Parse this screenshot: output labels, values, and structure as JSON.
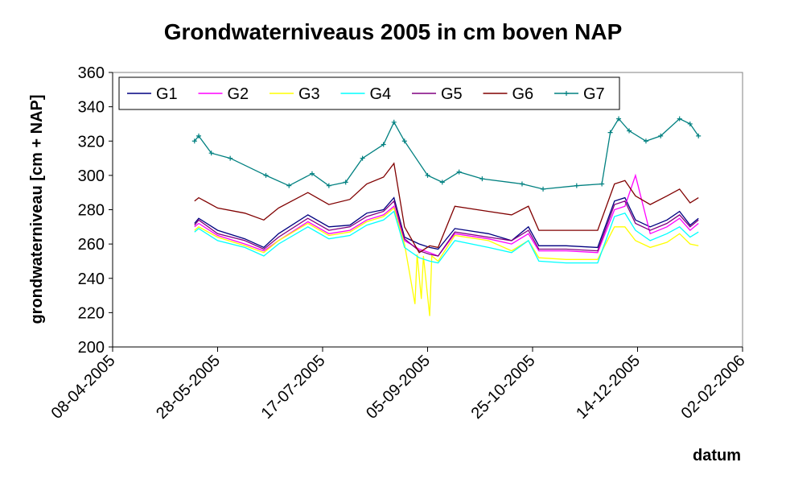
{
  "chart_data": {
    "type": "line",
    "title": "Grondwaterniveaus 2005 in cm boven NAP",
    "xlabel": "datum",
    "ylabel": "grondwaterniveau [cm + NAP]",
    "ylim": [
      200,
      360
    ],
    "yticks": [
      200,
      220,
      240,
      260,
      280,
      300,
      320,
      340,
      360
    ],
    "xticks": [
      "08-04-2005",
      "28-05-2005",
      "17-07-2005",
      "05-09-2005",
      "25-10-2005",
      "14-12-2005",
      "02-02-2006"
    ],
    "xlim": [
      "2005-04-08",
      "2006-02-02"
    ],
    "grid": false,
    "legend": "top-left",
    "series": [
      {
        "name": "G1",
        "color": "#000080",
        "marker": "none",
        "x": [
          "2005-05-17",
          "2005-05-19",
          "2005-05-28",
          "2005-06-10",
          "2005-06-19",
          "2005-06-26",
          "2005-07-10",
          "2005-07-20",
          "2005-07-30",
          "2005-08-07",
          "2005-08-15",
          "2005-08-20",
          "2005-08-25",
          "2005-09-01",
          "2005-09-06",
          "2005-09-10",
          "2005-09-18",
          "2005-10-04",
          "2005-10-15",
          "2005-10-23",
          "2005-10-28",
          "2005-11-10",
          "2005-11-25",
          "2005-12-03",
          "2005-12-08",
          "2005-12-13",
          "2005-12-20",
          "2005-12-28",
          "2006-01-03",
          "2006-01-08",
          "2006-01-12"
        ],
        "y": [
          272,
          275,
          268,
          263,
          258,
          266,
          277,
          270,
          271,
          278,
          280,
          287,
          264,
          260,
          258,
          257,
          269,
          266,
          262,
          270,
          259,
          259,
          258,
          285,
          287,
          274,
          270,
          274,
          279,
          271,
          275
        ]
      },
      {
        "name": "G2",
        "color": "#FF00FF",
        "marker": "none",
        "x": [
          "2005-05-17",
          "2005-05-19",
          "2005-05-28",
          "2005-06-10",
          "2005-06-19",
          "2005-06-26",
          "2005-07-10",
          "2005-07-20",
          "2005-07-30",
          "2005-08-07",
          "2005-08-15",
          "2005-08-20",
          "2005-08-25",
          "2005-09-01",
          "2005-09-06",
          "2005-09-10",
          "2005-09-18",
          "2005-10-04",
          "2005-10-15",
          "2005-10-23",
          "2005-10-28",
          "2005-11-10",
          "2005-11-25",
          "2005-12-03",
          "2005-12-08",
          "2005-12-13",
          "2005-12-20",
          "2005-12-28",
          "2006-01-03",
          "2006-01-08",
          "2006-01-12"
        ],
        "y": [
          270,
          272,
          265,
          260,
          256,
          262,
          273,
          266,
          268,
          274,
          277,
          282,
          262,
          257,
          255,
          253,
          266,
          263,
          260,
          266,
          256,
          256,
          255,
          280,
          282,
          300,
          266,
          270,
          275,
          268,
          272
        ]
      },
      {
        "name": "G3",
        "color": "#FFFF00",
        "marker": "none",
        "x": [
          "2005-05-17",
          "2005-05-19",
          "2005-05-28",
          "2005-06-10",
          "2005-06-19",
          "2005-06-26",
          "2005-07-10",
          "2005-07-20",
          "2005-07-30",
          "2005-08-07",
          "2005-08-15",
          "2005-08-20",
          "2005-08-25",
          "2005-08-30",
          "2005-08-31",
          "2005-09-02",
          "2005-09-03",
          "2005-09-06",
          "2005-09-07",
          "2005-09-10",
          "2005-09-18",
          "2005-10-04",
          "2005-10-15",
          "2005-10-23",
          "2005-10-28",
          "2005-11-10",
          "2005-11-25",
          "2005-12-03",
          "2005-12-08",
          "2005-12-13",
          "2005-12-20",
          "2005-12-28",
          "2006-01-03",
          "2006-01-08",
          "2006-01-12"
        ],
        "y": [
          268,
          270,
          264,
          259,
          255,
          262,
          272,
          265,
          267,
          273,
          276,
          281,
          260,
          225,
          254,
          228,
          253,
          218,
          253,
          250,
          265,
          262,
          256,
          262,
          252,
          251,
          251,
          270,
          270,
          262,
          258,
          261,
          266,
          260,
          259
        ]
      },
      {
        "name": "G4",
        "color": "#00FFFF",
        "marker": "none",
        "x": [
          "2005-05-17",
          "2005-05-19",
          "2005-05-28",
          "2005-06-10",
          "2005-06-19",
          "2005-06-26",
          "2005-07-10",
          "2005-07-20",
          "2005-07-30",
          "2005-08-07",
          "2005-08-15",
          "2005-08-20",
          "2005-08-25",
          "2005-09-01",
          "2005-09-06",
          "2005-09-10",
          "2005-09-18",
          "2005-10-04",
          "2005-10-15",
          "2005-10-23",
          "2005-10-28",
          "2005-11-10",
          "2005-11-25",
          "2005-12-03",
          "2005-12-08",
          "2005-12-13",
          "2005-12-20",
          "2005-12-28",
          "2006-01-03",
          "2006-01-08",
          "2006-01-12"
        ],
        "y": [
          267,
          269,
          262,
          258,
          253,
          260,
          270,
          263,
          265,
          271,
          274,
          279,
          258,
          252,
          250,
          249,
          262,
          258,
          255,
          262,
          250,
          249,
          249,
          276,
          278,
          268,
          262,
          266,
          270,
          264,
          267
        ]
      },
      {
        "name": "G5",
        "color": "#800080",
        "marker": "none",
        "x": [
          "2005-05-17",
          "2005-05-19",
          "2005-05-28",
          "2005-06-10",
          "2005-06-19",
          "2005-06-26",
          "2005-07-10",
          "2005-07-20",
          "2005-07-30",
          "2005-08-07",
          "2005-08-15",
          "2005-08-20",
          "2005-08-25",
          "2005-09-01",
          "2005-09-06",
          "2005-09-10",
          "2005-09-18",
          "2005-10-04",
          "2005-10-15",
          "2005-10-23",
          "2005-10-28",
          "2005-11-10",
          "2005-11-25",
          "2005-12-03",
          "2005-12-08",
          "2005-12-13",
          "2005-12-20",
          "2005-12-28",
          "2006-01-03",
          "2006-01-08",
          "2006-01-12"
        ],
        "y": [
          271,
          274,
          266,
          262,
          257,
          264,
          275,
          268,
          270,
          276,
          279,
          285,
          263,
          256,
          254,
          253,
          267,
          264,
          262,
          268,
          257,
          257,
          256,
          283,
          285,
          272,
          268,
          272,
          277,
          270,
          274
        ]
      },
      {
        "name": "G6",
        "color": "#800000",
        "marker": "none",
        "x": [
          "2005-05-17",
          "2005-05-19",
          "2005-05-28",
          "2005-06-10",
          "2005-06-19",
          "2005-06-26",
          "2005-07-10",
          "2005-07-20",
          "2005-07-30",
          "2005-08-07",
          "2005-08-15",
          "2005-08-20",
          "2005-08-25",
          "2005-09-01",
          "2005-09-06",
          "2005-09-10",
          "2005-09-18",
          "2005-10-04",
          "2005-10-15",
          "2005-10-23",
          "2005-10-28",
          "2005-11-10",
          "2005-11-25",
          "2005-12-03",
          "2005-12-08",
          "2005-12-13",
          "2005-12-20",
          "2005-12-28",
          "2006-01-03",
          "2006-01-08",
          "2006-01-12"
        ],
        "y": [
          285,
          287,
          281,
          278,
          274,
          281,
          290,
          283,
          286,
          295,
          299,
          307,
          270,
          255,
          259,
          258,
          282,
          279,
          277,
          282,
          268,
          268,
          268,
          295,
          297,
          288,
          283,
          288,
          292,
          284,
          287
        ]
      },
      {
        "name": "G7",
        "color": "#008080",
        "marker": "plus",
        "x": [
          "2005-05-17",
          "2005-05-19",
          "2005-05-25",
          "2005-06-03",
          "2005-06-20",
          "2005-07-01",
          "2005-07-12",
          "2005-07-20",
          "2005-07-28",
          "2005-08-05",
          "2005-08-15",
          "2005-08-20",
          "2005-08-25",
          "2005-09-05",
          "2005-09-12",
          "2005-09-20",
          "2005-10-01",
          "2005-10-20",
          "2005-10-30",
          "2005-11-15",
          "2005-11-27",
          "2005-12-01",
          "2005-12-05",
          "2005-12-10",
          "2005-12-18",
          "2005-12-25",
          "2006-01-03",
          "2006-01-08",
          "2006-01-12"
        ],
        "y": [
          320,
          323,
          313,
          310,
          300,
          294,
          301,
          294,
          296,
          310,
          318,
          331,
          320,
          300,
          296,
          302,
          298,
          295,
          292,
          294,
          295,
          325,
          333,
          326,
          320,
          323,
          333,
          330,
          323
        ]
      }
    ]
  }
}
